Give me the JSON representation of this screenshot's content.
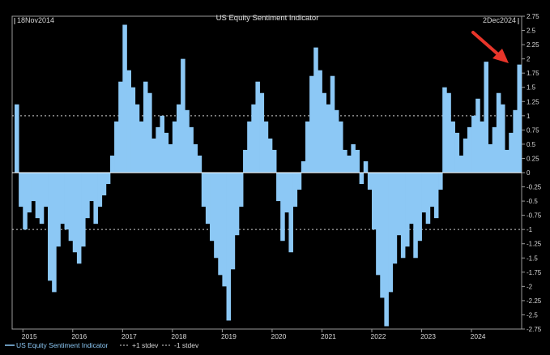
{
  "header": {
    "start_date": "18Nov2014",
    "end_date": "2Dec2024"
  },
  "legend": {
    "series_label": "US Equity Sentiment Indicator",
    "plus_label": "+1 stdev",
    "minus_label": "-1 stdev"
  },
  "colors": {
    "background": "#000000",
    "bars": "#8cc8f5",
    "frame": "#9a9a9a",
    "text": "#d8d8d8",
    "arrow": "#e8352a"
  },
  "chart_data": {
    "type": "bar",
    "title": "US Equity Sentiment Indicator",
    "xlabel": "",
    "ylabel": "",
    "x_tick_labels": [
      "2015",
      "2016",
      "2017",
      "2018",
      "2019",
      "2020",
      "2021",
      "2022",
      "2023",
      "2024"
    ],
    "ylim": [
      -2.75,
      2.75
    ],
    "y_ticks": [
      2.75,
      2.5,
      2.25,
      2,
      1.75,
      1.5,
      1.25,
      1,
      0.75,
      0.5,
      0.25,
      0,
      -0.25,
      -0.5,
      -0.75,
      -1,
      -1.25,
      -1.5,
      -1.75,
      -2,
      -2.25,
      -2.5,
      -2.75
    ],
    "y_tick_labels": [
      "2.75",
      "2.5",
      "2.25",
      "2",
      "1.75",
      "1.5",
      "1.25",
      "1",
      "0.75",
      "0.5",
      "0.25",
      "0",
      "-0.25",
      "-0.5",
      "-0.75",
      "-1",
      "-1.25",
      "-1.5",
      "-1.75",
      "-2",
      "-2.25",
      "-2.5",
      "-2.75"
    ],
    "reference_lines": [
      {
        "name": "+1 stdev",
        "value": 1,
        "style": "dashed"
      },
      {
        "name": "-1 stdev",
        "value": -1,
        "style": "dashed"
      }
    ],
    "grid": false,
    "legend_position": "bottom-left",
    "series": [
      {
        "name": "US Equity Sentiment Indicator",
        "x": [
          "2014-11",
          "2014-12",
          "2015-01",
          "2015-02",
          "2015-03",
          "2015-04",
          "2015-05",
          "2015-06",
          "2015-07",
          "2015-08",
          "2015-09",
          "2015-10",
          "2015-11",
          "2015-12",
          "2016-01",
          "2016-02",
          "2016-03",
          "2016-04",
          "2016-05",
          "2016-06",
          "2016-07",
          "2016-08",
          "2016-09",
          "2016-10",
          "2016-11",
          "2016-12",
          "2017-01",
          "2017-02",
          "2017-03",
          "2017-04",
          "2017-05",
          "2017-06",
          "2017-07",
          "2017-08",
          "2017-09",
          "2017-10",
          "2017-11",
          "2017-12",
          "2018-01",
          "2018-02",
          "2018-03",
          "2018-04",
          "2018-05",
          "2018-06",
          "2018-07",
          "2018-08",
          "2018-09",
          "2018-10",
          "2018-11",
          "2018-12",
          "2019-01",
          "2019-02",
          "2019-03",
          "2019-04",
          "2019-05",
          "2019-06",
          "2019-07",
          "2019-08",
          "2019-09",
          "2019-10",
          "2019-11",
          "2019-12",
          "2020-01",
          "2020-02",
          "2020-03",
          "2020-04",
          "2020-05",
          "2020-06",
          "2020-07",
          "2020-08",
          "2020-09",
          "2020-10",
          "2020-11",
          "2020-12",
          "2021-01",
          "2021-02",
          "2021-03",
          "2021-04",
          "2021-05",
          "2021-06",
          "2021-07",
          "2021-08",
          "2021-09",
          "2021-10",
          "2021-11",
          "2021-12",
          "2022-01",
          "2022-02",
          "2022-03",
          "2022-04",
          "2022-05",
          "2022-06",
          "2022-07",
          "2022-08",
          "2022-09",
          "2022-10",
          "2022-11",
          "2022-12",
          "2023-01",
          "2023-02",
          "2023-03",
          "2023-04",
          "2023-05",
          "2023-06",
          "2023-07",
          "2023-08",
          "2023-09",
          "2023-10",
          "2023-11",
          "2023-12",
          "2024-01",
          "2024-02",
          "2024-03",
          "2024-04",
          "2024-05",
          "2024-06",
          "2024-07",
          "2024-08",
          "2024-09",
          "2024-10",
          "2024-11",
          "2024-12"
        ],
        "values": [
          1.2,
          -0.6,
          -1.0,
          -0.7,
          -0.5,
          -0.8,
          -0.9,
          -0.6,
          -1.9,
          -2.1,
          -1.3,
          -0.9,
          -1.0,
          -1.2,
          -1.4,
          -1.6,
          -1.3,
          -0.8,
          -0.5,
          -0.9,
          -0.6,
          -0.4,
          -0.2,
          0.3,
          0.9,
          1.6,
          2.6,
          1.8,
          1.5,
          1.2,
          0.9,
          1.6,
          1.4,
          0.6,
          0.8,
          1.0,
          0.7,
          0.5,
          0.9,
          1.2,
          2.0,
          1.1,
          0.8,
          0.5,
          0.3,
          -0.6,
          -0.9,
          -1.2,
          -1.5,
          -1.8,
          -2.0,
          -2.6,
          -1.7,
          -1.1,
          -0.6,
          0.4,
          0.9,
          1.2,
          1.6,
          1.4,
          0.9,
          0.6,
          0.4,
          -0.5,
          -1.2,
          -0.7,
          -1.4,
          -0.6,
          -0.3,
          0.2,
          0.9,
          1.7,
          2.2,
          1.8,
          1.4,
          1.2,
          1.7,
          1.1,
          0.9,
          0.4,
          0.3,
          0.5,
          0.4,
          -0.2,
          0.2,
          -0.3,
          -1.0,
          -1.8,
          -2.2,
          -2.7,
          -2.1,
          -1.6,
          -1.1,
          -1.5,
          -1.3,
          -0.9,
          -1.5,
          -1.2,
          -0.7,
          -0.9,
          -0.6,
          -0.8,
          -0.3,
          1.5,
          1.4,
          0.9,
          0.7,
          0.3,
          0.6,
          0.8,
          1.0,
          1.3,
          0.9,
          1.95,
          0.5,
          0.8,
          1.4,
          1.2,
          0.4,
          0.7,
          1.1,
          1.9
        ]
      }
    ]
  }
}
